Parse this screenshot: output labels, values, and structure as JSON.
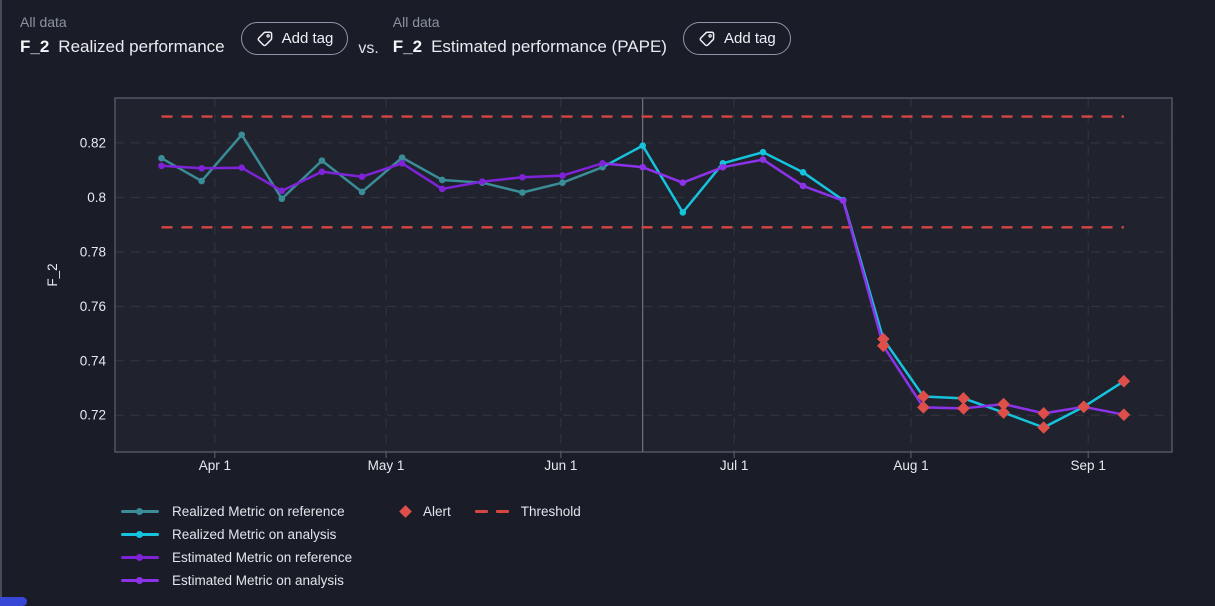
{
  "colors": {
    "background": "#1a1d27",
    "plot_background": "#20232e",
    "plot_border": "#5d6470",
    "gridline": "#343842",
    "divider": "#7e8590",
    "axis_text": "#e7e9ed",
    "realized_reference": "#3a8c96",
    "realized_analysis": "#16c3dd",
    "estimated_reference": "#7e23d8",
    "estimated_analysis": "#8c33ea",
    "alert": "#df4f4a",
    "threshold": "#d64540",
    "corner_accent": "#3847d6"
  },
  "header": {
    "left": {
      "subtitle": "All data",
      "metric": "F_2",
      "title": "Realized performance",
      "add_tag_label": "Add tag"
    },
    "vs_label": "vs.",
    "right": {
      "subtitle": "All data",
      "metric": "F_2",
      "title": "Estimated performance (PAPE)",
      "add_tag_label": "Add tag"
    }
  },
  "chart_data": {
    "type": "line",
    "title": "",
    "xlabel": "",
    "ylabel": "F_2",
    "x_unit": "week_index",
    "grid": "dashed",
    "legend_position": "bottom",
    "xlim": [
      -1.16,
      25.2
    ],
    "ylim": [
      0.7065,
      0.8365
    ],
    "reference_analysis_split_x": 12,
    "thresholds": {
      "upper": 0.8297,
      "lower": 0.789
    },
    "x_ticks": [
      {
        "label": "Apr 1",
        "x": 1.33
      },
      {
        "label": "May 1",
        "x": 5.6
      },
      {
        "label": "Jun 1",
        "x": 9.96
      },
      {
        "label": "Jul 1",
        "x": 14.28
      },
      {
        "label": "Aug 1",
        "x": 18.69
      },
      {
        "label": "Sep 1",
        "x": 23.11
      }
    ],
    "y_ticks": [
      {
        "label": "0.82",
        "value": 0.82
      },
      {
        "label": "0.8",
        "value": 0.8
      },
      {
        "label": "0.78",
        "value": 0.78
      },
      {
        "label": "0.76",
        "value": 0.76
      },
      {
        "label": "0.74",
        "value": 0.74
      },
      {
        "label": "0.72",
        "value": 0.72
      }
    ],
    "series": [
      {
        "name": "Realized Metric on reference",
        "color": "realized_reference",
        "x_start": 0,
        "values": [
          0.8144,
          0.806,
          0.823,
          0.7995,
          0.8135,
          0.802,
          0.8146,
          0.8064,
          0.8054,
          0.8018,
          0.8054,
          0.8111
        ]
      },
      {
        "name": "Realized Metric on analysis",
        "color": "realized_analysis",
        "x_start": 12,
        "values": [
          0.819,
          0.7945,
          0.8125,
          0.8166,
          0.8092,
          0.799,
          0.748,
          0.7269,
          0.7262,
          0.721,
          0.7155,
          0.7231,
          0.7325
        ]
      },
      {
        "name": "Estimated Metric on reference",
        "color": "estimated_reference",
        "x_start": 0,
        "values": [
          0.8116,
          0.8107,
          0.8109,
          0.8024,
          0.8094,
          0.8076,
          0.8125,
          0.8031,
          0.8058,
          0.8074,
          0.808,
          0.8125
        ]
      },
      {
        "name": "Estimated Metric on analysis",
        "color": "estimated_analysis",
        "x_start": 12,
        "values": [
          0.8111,
          0.8054,
          0.8111,
          0.8139,
          0.8042,
          0.7988,
          0.7455,
          0.7229,
          0.7225,
          0.7241,
          0.7207,
          0.7231,
          0.7202
        ]
      }
    ],
    "alerts": [
      {
        "series": "Realized Metric on analysis",
        "x": [
          18,
          19,
          20,
          21,
          22,
          23,
          24
        ],
        "values": [
          0.748,
          0.7269,
          0.7262,
          0.721,
          0.7155,
          0.7231,
          0.7325
        ]
      },
      {
        "series": "Estimated Metric on analysis",
        "x": [
          18,
          19,
          20,
          21,
          22,
          23,
          24
        ],
        "values": [
          0.7455,
          0.7229,
          0.7225,
          0.7241,
          0.7207,
          0.7231,
          0.7202
        ]
      }
    ]
  },
  "legend": {
    "items": [
      {
        "label": "Realized Metric on reference",
        "color": "realized_reference"
      },
      {
        "label": "Realized Metric on analysis",
        "color": "realized_analysis"
      },
      {
        "label": "Estimated Metric on reference",
        "color": "estimated_reference"
      },
      {
        "label": "Estimated Metric on analysis",
        "color": "estimated_analysis"
      }
    ],
    "alert_label": "Alert",
    "threshold_label": "Threshold"
  }
}
